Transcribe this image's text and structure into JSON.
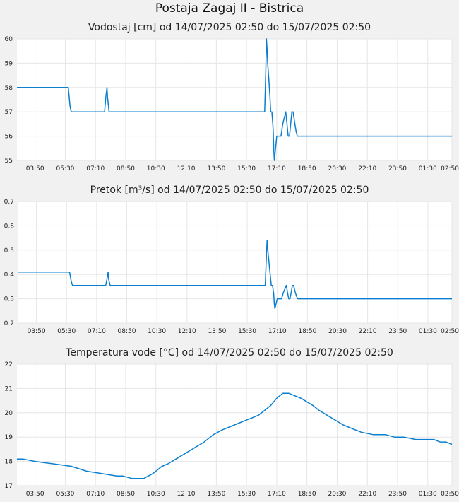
{
  "title": "Postaja Zagaj II - Bistrica",
  "line_color": "#0a7fd0",
  "chart_data": [
    {
      "type": "line",
      "title": "Vodostaj [cm] od 14/07/2025 02:50 do 15/07/2025 02:50",
      "ylim": [
        55,
        60
      ],
      "yticks": [
        "60",
        "59",
        "58",
        "57",
        "56",
        "55"
      ],
      "xlim": [
        0,
        1440
      ],
      "xticks": [
        {
          "t": 60,
          "label": "03:50"
        },
        {
          "t": 160,
          "label": "05:30"
        },
        {
          "t": 260,
          "label": "07:10"
        },
        {
          "t": 360,
          "label": "08:50"
        },
        {
          "t": 460,
          "label": "10:30"
        },
        {
          "t": 560,
          "label": "12:10"
        },
        {
          "t": 660,
          "label": "13:50"
        },
        {
          "t": 760,
          "label": "15:30"
        },
        {
          "t": 860,
          "label": "17:10"
        },
        {
          "t": 960,
          "label": "18:50"
        },
        {
          "t": 1060,
          "label": "20:30"
        },
        {
          "t": 1160,
          "label": "22:10"
        },
        {
          "t": 1260,
          "label": "23:50"
        },
        {
          "t": 1360,
          "label": "01:30"
        },
        {
          "t": 1440,
          "label": "02:50"
        }
      ],
      "x": [
        0,
        170,
        176,
        180,
        290,
        294,
        298,
        300,
        305,
        310,
        820,
        824,
        826,
        828,
        830,
        834,
        838,
        840,
        844,
        848,
        850,
        852,
        856,
        860,
        866,
        870,
        874,
        880,
        890,
        894,
        898,
        902,
        906,
        910,
        914,
        920,
        924,
        928,
        932,
        936,
        940,
        950,
        1440
      ],
      "values": [
        58,
        58,
        57.2,
        57,
        57,
        57.6,
        58,
        57.6,
        57,
        57,
        57,
        58.8,
        60,
        59.6,
        59,
        58.3,
        57.5,
        57,
        57,
        56.3,
        55.5,
        55,
        55.5,
        56,
        56,
        56,
        56,
        56.5,
        57,
        56.5,
        56,
        56,
        56.5,
        57,
        57,
        56.5,
        56.2,
        56,
        56,
        56,
        56,
        56,
        56
      ]
    },
    {
      "type": "line",
      "title": "Pretok [m³/s] od 14/07/2025 02:50 do 15/07/2025 02:50",
      "ylim": [
        0.2,
        0.7
      ],
      "yticks": [
        "0.7",
        "0.6",
        "0.5",
        "0.4",
        "0.3",
        "0.2"
      ],
      "xlim": [
        0,
        1440
      ],
      "xticks": [
        {
          "t": 60,
          "label": "03:50"
        },
        {
          "t": 160,
          "label": "05:30"
        },
        {
          "t": 260,
          "label": "07:10"
        },
        {
          "t": 360,
          "label": "08:50"
        },
        {
          "t": 460,
          "label": "10:30"
        },
        {
          "t": 560,
          "label": "12:10"
        },
        {
          "t": 660,
          "label": "13:50"
        },
        {
          "t": 760,
          "label": "15:30"
        },
        {
          "t": 860,
          "label": "17:10"
        },
        {
          "t": 960,
          "label": "18:50"
        },
        {
          "t": 1060,
          "label": "20:30"
        },
        {
          "t": 1160,
          "label": "22:10"
        },
        {
          "t": 1260,
          "label": "23:50"
        },
        {
          "t": 1360,
          "label": "01:30"
        },
        {
          "t": 1440,
          "label": "02:50"
        }
      ],
      "x": [
        0,
        170,
        176,
        180,
        290,
        294,
        298,
        300,
        305,
        310,
        820,
        824,
        826,
        828,
        830,
        834,
        838,
        840,
        844,
        848,
        850,
        852,
        856,
        860,
        866,
        870,
        874,
        880,
        890,
        894,
        898,
        902,
        906,
        910,
        914,
        920,
        924,
        928,
        932,
        936,
        940,
        950,
        1440
      ],
      "values": [
        0.41,
        0.41,
        0.37,
        0.355,
        0.355,
        0.38,
        0.41,
        0.38,
        0.355,
        0.355,
        0.355,
        0.48,
        0.54,
        0.51,
        0.48,
        0.43,
        0.38,
        0.355,
        0.355,
        0.32,
        0.28,
        0.26,
        0.28,
        0.3,
        0.3,
        0.3,
        0.3,
        0.325,
        0.355,
        0.325,
        0.3,
        0.3,
        0.325,
        0.355,
        0.355,
        0.325,
        0.31,
        0.3,
        0.3,
        0.3,
        0.3,
        0.3,
        0.3
      ]
    },
    {
      "type": "line",
      "title": "Temperatura vode [°C] od 14/07/2025 02:50 do 15/07/2025 02:50",
      "ylim": [
        17,
        22
      ],
      "yticks": [
        "22",
        "21",
        "20",
        "19",
        "18",
        "17"
      ],
      "xlim": [
        0,
        1440
      ],
      "xticks": [
        {
          "t": 60,
          "label": "03:50"
        },
        {
          "t": 160,
          "label": "05:30"
        },
        {
          "t": 260,
          "label": "07:10"
        },
        {
          "t": 360,
          "label": "08:50"
        },
        {
          "t": 460,
          "label": "10:30"
        },
        {
          "t": 560,
          "label": "12:10"
        },
        {
          "t": 660,
          "label": "13:50"
        },
        {
          "t": 760,
          "label": "15:30"
        },
        {
          "t": 860,
          "label": "17:10"
        },
        {
          "t": 960,
          "label": "18:50"
        },
        {
          "t": 1060,
          "label": "20:30"
        },
        {
          "t": 1160,
          "label": "22:10"
        },
        {
          "t": 1260,
          "label": "23:50"
        },
        {
          "t": 1360,
          "label": "01:30"
        },
        {
          "t": 1440,
          "label": "02:50"
        }
      ],
      "x": [
        0,
        20,
        60,
        120,
        180,
        230,
        280,
        330,
        350,
        380,
        420,
        450,
        480,
        500,
        540,
        580,
        620,
        650,
        680,
        720,
        760,
        780,
        800,
        820,
        840,
        860,
        880,
        900,
        940,
        980,
        1000,
        1040,
        1080,
        1120,
        1140,
        1180,
        1220,
        1250,
        1280,
        1320,
        1340,
        1380,
        1400,
        1420,
        1440
      ],
      "values": [
        18.1,
        18.1,
        18,
        17.9,
        17.8,
        17.6,
        17.5,
        17.4,
        17.4,
        17.3,
        17.3,
        17.5,
        17.8,
        17.9,
        18.2,
        18.5,
        18.8,
        19.1,
        19.3,
        19.5,
        19.7,
        19.8,
        19.9,
        20.1,
        20.3,
        20.6,
        20.8,
        20.8,
        20.6,
        20.3,
        20.1,
        19.8,
        19.5,
        19.3,
        19.2,
        19.1,
        19.1,
        19.0,
        19.0,
        18.9,
        18.9,
        18.9,
        18.8,
        18.8,
        18.7
      ]
    }
  ]
}
